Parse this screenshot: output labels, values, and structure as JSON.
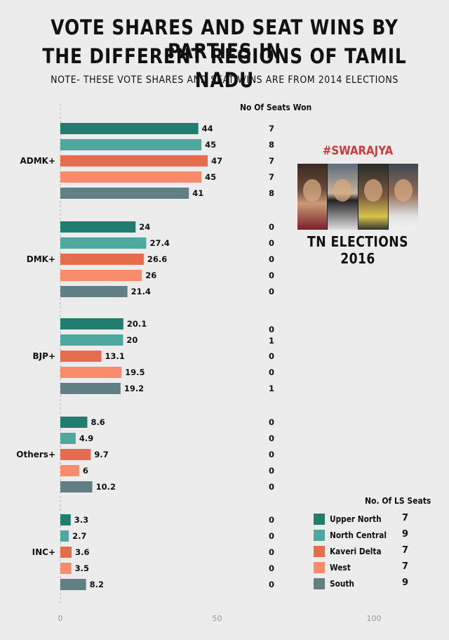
{
  "title_line1": "VOTE SHARES AND SEAT WINS BY PARTIES IN",
  "title_line2": "THE DIFFERENT REGIONS OF TAMIL NADU",
  "note": "NOTE-  THESE VOTE SHARES AND SEAT WINS ARE FROM 2014 ELECTIONS",
  "seats_won_header": "No Of Seats Won",
  "ls_seats_header": "No. Of LS Seats",
  "brand": "#SWARAJYA",
  "badge_title": "TN ELECTIONS 2016",
  "regions": [
    {
      "name": "Upper North",
      "color": "#217e6e",
      "ls_seats": "7"
    },
    {
      "name": "North Central",
      "color": "#4fa89d",
      "ls_seats": "9"
    },
    {
      "name": "Kaveri Delta",
      "color": "#e56c4d",
      "ls_seats": "7"
    },
    {
      "name": "West",
      "color": "#f98b6d",
      "ls_seats": "7"
    },
    {
      "name": "South",
      "color": "#627f84",
      "ls_seats": "9"
    }
  ],
  "chart_data": {
    "type": "bar",
    "orientation": "horizontal",
    "xlim": [
      0,
      100
    ],
    "xticks": [
      "0",
      "50",
      "100"
    ],
    "categories": [
      "ADMK+",
      "DMK+",
      "BJP+",
      "Others+",
      "INC+"
    ],
    "series": [
      {
        "name": "Upper North",
        "values": [
          44,
          24,
          20.1,
          8.6,
          3.3
        ],
        "labels": [
          "44",
          "24",
          "20.1",
          "8.6",
          "3.3"
        ],
        "seats_won": [
          "7",
          "0",
          "0",
          "0",
          "0"
        ]
      },
      {
        "name": "North Central",
        "values": [
          45,
          27.4,
          20,
          4.9,
          2.7
        ],
        "labels": [
          "45",
          "27.4",
          "20",
          "4.9",
          "2.7"
        ],
        "seats_won": [
          "8",
          "0",
          "1",
          "0",
          "0"
        ]
      },
      {
        "name": "Kaveri Delta",
        "values": [
          47,
          26.6,
          13.1,
          9.7,
          3.6
        ],
        "labels": [
          "47",
          "26.6",
          "13.1",
          "9.7",
          "3.6"
        ],
        "seats_won": [
          "7",
          "0",
          "0",
          "0",
          "0"
        ]
      },
      {
        "name": "West",
        "values": [
          45,
          26,
          19.5,
          6,
          3.5
        ],
        "labels": [
          "45",
          "26",
          "19.5",
          "6",
          "3.5"
        ],
        "seats_won": [
          "7",
          "0",
          "0",
          "0",
          "0"
        ]
      },
      {
        "name": "South",
        "values": [
          41,
          21.4,
          19.2,
          10.2,
          8.2
        ],
        "labels": [
          "41",
          "21.4",
          "19.2",
          "10.2",
          "8.2"
        ],
        "seats_won": [
          "8",
          "0",
          "1",
          "0",
          "0"
        ]
      }
    ]
  }
}
